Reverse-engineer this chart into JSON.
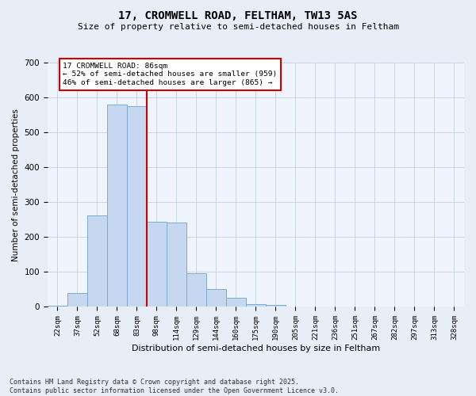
{
  "title_line1": "17, CROMWELL ROAD, FELTHAM, TW13 5AS",
  "title_line2": "Size of property relative to semi-detached houses in Feltham",
  "xlabel": "Distribution of semi-detached houses by size in Feltham",
  "ylabel": "Number of semi-detached properties",
  "categories": [
    "22sqm",
    "37sqm",
    "52sqm",
    "68sqm",
    "83sqm",
    "98sqm",
    "114sqm",
    "129sqm",
    "144sqm",
    "160sqm",
    "175sqm",
    "190sqm",
    "205sqm",
    "221sqm",
    "236sqm",
    "251sqm",
    "267sqm",
    "282sqm",
    "297sqm",
    "313sqm",
    "328sqm"
  ],
  "values": [
    4,
    40,
    263,
    580,
    575,
    245,
    242,
    97,
    50,
    27,
    7,
    5,
    0,
    0,
    0,
    0,
    0,
    0,
    0,
    0,
    0
  ],
  "bar_color": "#c5d8f0",
  "bar_edge_color": "#7aadd4",
  "highlight_line_color": "#cc0000",
  "annotation_title": "17 CROMWELL ROAD: 86sqm",
  "annotation_line1": "← 52% of semi-detached houses are smaller (959)",
  "annotation_line2": "46% of semi-detached houses are larger (865) →",
  "annotation_box_color": "#cc0000",
  "ylim": [
    0,
    700
  ],
  "yticks": [
    0,
    100,
    200,
    300,
    400,
    500,
    600,
    700
  ],
  "footer_line1": "Contains HM Land Registry data © Crown copyright and database right 2025.",
  "footer_line2": "Contains public sector information licensed under the Open Government Licence v3.0.",
  "bg_color": "#e8eef8",
  "plot_bg_color": "#f0f4fc"
}
